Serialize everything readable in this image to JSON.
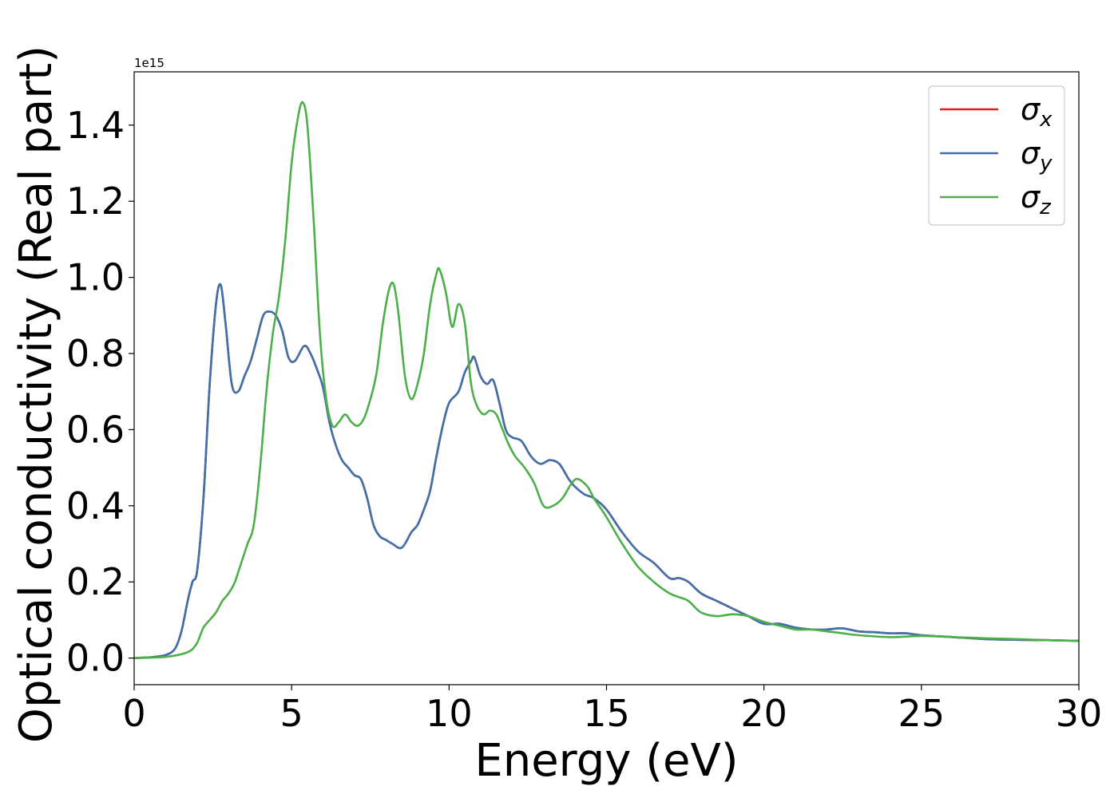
{
  "chart_data": {
    "type": "line",
    "title": "",
    "xlabel": "Energy (eV)",
    "ylabel": "Optical conductivity (Real part)",
    "y_offset_label": "1e15",
    "xlim": [
      0,
      30
    ],
    "ylim": [
      -0.07,
      1.54
    ],
    "xticks": [
      0,
      5,
      10,
      15,
      20,
      25,
      30
    ],
    "xtick_labels": [
      "0",
      "5",
      "10",
      "15",
      "20",
      "25",
      "30"
    ],
    "yticks": [
      0.0,
      0.2,
      0.4,
      0.6,
      0.8,
      1.0,
      1.2,
      1.4
    ],
    "ytick_labels": [
      "0.0",
      "0.2",
      "0.4",
      "0.6",
      "0.8",
      "1.0",
      "1.2",
      "1.4"
    ],
    "grid": false,
    "legend_position": "top-right",
    "series": [
      {
        "name": "σx",
        "legend_base": "σ",
        "legend_sub": "x",
        "color": "#e41a1c",
        "x": [
          0,
          0.5,
          1.0,
          1.3,
          1.5,
          1.7,
          1.85,
          2.0,
          2.2,
          2.4,
          2.6,
          2.75,
          2.9,
          3.1,
          3.3,
          3.5,
          3.7,
          3.9,
          4.1,
          4.3,
          4.5,
          4.7,
          4.9,
          5.1,
          5.4,
          5.6,
          5.8,
          6.0,
          6.2,
          6.4,
          6.6,
          6.8,
          7.0,
          7.2,
          7.4,
          7.6,
          7.8,
          8.0,
          8.2,
          8.5,
          8.8,
          9.0,
          9.2,
          9.4,
          9.6,
          9.8,
          10.0,
          10.3,
          10.5,
          10.7,
          10.8,
          11.0,
          11.2,
          11.4,
          11.6,
          11.8,
          12.0,
          12.3,
          12.6,
          12.9,
          13.2,
          13.5,
          13.8,
          14.0,
          14.3,
          14.6,
          15.0,
          15.5,
          16.0,
          16.5,
          17.0,
          17.3,
          17.6,
          18.0,
          18.5,
          19.0,
          19.5,
          20.0,
          20.5,
          21.0,
          21.5,
          22.0,
          22.5,
          23.0,
          23.5,
          24.0,
          24.5,
          25.0,
          26.0,
          27.0,
          28.0,
          29.0,
          30.0
        ],
        "values": [
          0,
          0.002,
          0.008,
          0.025,
          0.07,
          0.15,
          0.2,
          0.23,
          0.42,
          0.72,
          0.93,
          0.98,
          0.88,
          0.72,
          0.7,
          0.74,
          0.78,
          0.84,
          0.9,
          0.91,
          0.9,
          0.86,
          0.79,
          0.78,
          0.82,
          0.8,
          0.76,
          0.71,
          0.62,
          0.56,
          0.52,
          0.5,
          0.48,
          0.47,
          0.42,
          0.35,
          0.32,
          0.31,
          0.3,
          0.29,
          0.33,
          0.35,
          0.39,
          0.44,
          0.53,
          0.61,
          0.67,
          0.7,
          0.75,
          0.78,
          0.79,
          0.74,
          0.72,
          0.73,
          0.67,
          0.6,
          0.58,
          0.57,
          0.53,
          0.51,
          0.52,
          0.51,
          0.47,
          0.45,
          0.43,
          0.42,
          0.39,
          0.33,
          0.28,
          0.25,
          0.21,
          0.21,
          0.2,
          0.17,
          0.15,
          0.13,
          0.11,
          0.09,
          0.09,
          0.08,
          0.075,
          0.075,
          0.078,
          0.07,
          0.068,
          0.065,
          0.065,
          0.06,
          0.055,
          0.05,
          0.048,
          0.047,
          0.045
        ]
      },
      {
        "name": "σy",
        "legend_base": "σ",
        "legend_sub": "y",
        "color": "#3d72ad",
        "x": [
          0,
          0.5,
          1.0,
          1.3,
          1.5,
          1.7,
          1.85,
          2.0,
          2.2,
          2.4,
          2.6,
          2.75,
          2.9,
          3.1,
          3.3,
          3.5,
          3.7,
          3.9,
          4.1,
          4.3,
          4.5,
          4.7,
          4.9,
          5.1,
          5.4,
          5.6,
          5.8,
          6.0,
          6.2,
          6.4,
          6.6,
          6.8,
          7.0,
          7.2,
          7.4,
          7.6,
          7.8,
          8.0,
          8.2,
          8.5,
          8.8,
          9.0,
          9.2,
          9.4,
          9.6,
          9.8,
          10.0,
          10.3,
          10.5,
          10.7,
          10.8,
          11.0,
          11.2,
          11.4,
          11.6,
          11.8,
          12.0,
          12.3,
          12.6,
          12.9,
          13.2,
          13.5,
          13.8,
          14.0,
          14.3,
          14.6,
          15.0,
          15.5,
          16.0,
          16.5,
          17.0,
          17.3,
          17.6,
          18.0,
          18.5,
          19.0,
          19.5,
          20.0,
          20.5,
          21.0,
          21.5,
          22.0,
          22.5,
          23.0,
          23.5,
          24.0,
          24.5,
          25.0,
          26.0,
          27.0,
          28.0,
          29.0,
          30.0
        ],
        "values": [
          0,
          0.002,
          0.008,
          0.025,
          0.07,
          0.15,
          0.2,
          0.23,
          0.42,
          0.72,
          0.93,
          0.98,
          0.88,
          0.72,
          0.7,
          0.74,
          0.78,
          0.84,
          0.9,
          0.91,
          0.9,
          0.86,
          0.79,
          0.78,
          0.82,
          0.8,
          0.76,
          0.71,
          0.62,
          0.56,
          0.52,
          0.5,
          0.48,
          0.47,
          0.42,
          0.35,
          0.32,
          0.31,
          0.3,
          0.29,
          0.33,
          0.35,
          0.39,
          0.44,
          0.53,
          0.61,
          0.67,
          0.7,
          0.75,
          0.78,
          0.79,
          0.74,
          0.72,
          0.73,
          0.67,
          0.6,
          0.58,
          0.57,
          0.53,
          0.51,
          0.52,
          0.51,
          0.47,
          0.45,
          0.43,
          0.42,
          0.39,
          0.33,
          0.28,
          0.25,
          0.21,
          0.21,
          0.2,
          0.17,
          0.15,
          0.13,
          0.11,
          0.09,
          0.09,
          0.08,
          0.075,
          0.075,
          0.078,
          0.07,
          0.068,
          0.065,
          0.065,
          0.06,
          0.055,
          0.05,
          0.048,
          0.047,
          0.045
        ]
      },
      {
        "name": "σz",
        "legend_base": "σ",
        "legend_sub": "z",
        "color": "#4daf4a",
        "x": [
          0,
          1.0,
          1.5,
          1.8,
          2.0,
          2.2,
          2.4,
          2.6,
          2.8,
          3.0,
          3.2,
          3.4,
          3.6,
          3.8,
          4.0,
          4.2,
          4.4,
          4.6,
          4.8,
          5.0,
          5.2,
          5.35,
          5.5,
          5.7,
          5.9,
          6.1,
          6.3,
          6.5,
          6.7,
          6.9,
          7.1,
          7.3,
          7.5,
          7.7,
          7.9,
          8.1,
          8.25,
          8.4,
          8.6,
          8.8,
          9.0,
          9.2,
          9.4,
          9.6,
          9.7,
          9.9,
          10.1,
          10.3,
          10.5,
          10.7,
          10.9,
          11.1,
          11.3,
          11.5,
          11.7,
          11.9,
          12.1,
          12.4,
          12.7,
          13.0,
          13.3,
          13.6,
          13.9,
          14.1,
          14.4,
          14.6,
          15.0,
          15.5,
          16.0,
          16.5,
          17.0,
          17.3,
          17.6,
          18.0,
          18.5,
          19.0,
          19.5,
          20.0,
          20.5,
          21.0,
          21.5,
          22.0,
          22.5,
          23.0,
          24.0,
          25.0,
          26.0,
          27.0,
          28.0,
          29.0,
          30.0
        ],
        "values": [
          0,
          0.003,
          0.01,
          0.02,
          0.04,
          0.08,
          0.1,
          0.12,
          0.15,
          0.17,
          0.2,
          0.25,
          0.3,
          0.35,
          0.5,
          0.7,
          0.85,
          0.95,
          1.1,
          1.3,
          1.42,
          1.46,
          1.4,
          1.15,
          0.85,
          0.68,
          0.61,
          0.62,
          0.64,
          0.62,
          0.61,
          0.63,
          0.68,
          0.75,
          0.88,
          0.97,
          0.98,
          0.9,
          0.74,
          0.68,
          0.72,
          0.8,
          0.93,
          1.01,
          1.02,
          0.96,
          0.87,
          0.93,
          0.88,
          0.72,
          0.66,
          0.64,
          0.65,
          0.64,
          0.6,
          0.56,
          0.53,
          0.5,
          0.46,
          0.4,
          0.4,
          0.42,
          0.46,
          0.47,
          0.45,
          0.42,
          0.37,
          0.3,
          0.24,
          0.2,
          0.17,
          0.16,
          0.15,
          0.12,
          0.11,
          0.115,
          0.11,
          0.095,
          0.085,
          0.075,
          0.075,
          0.07,
          0.065,
          0.06,
          0.055,
          0.058,
          0.055,
          0.052,
          0.05,
          0.047,
          0.045
        ]
      }
    ]
  }
}
